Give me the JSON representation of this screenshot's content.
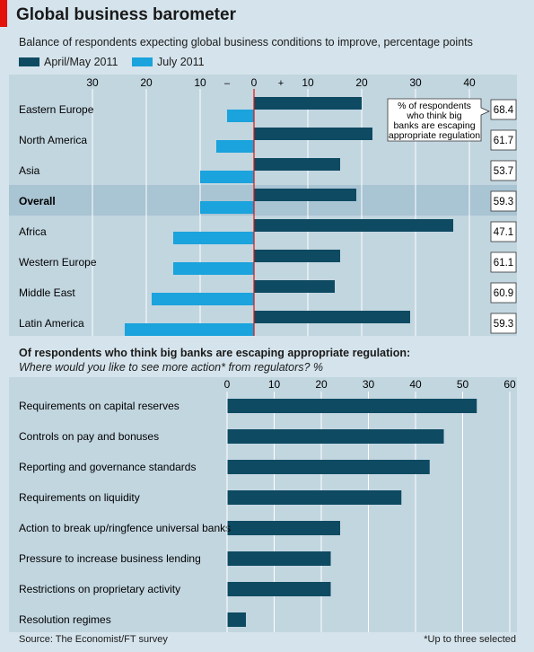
{
  "title": "Global business barometer",
  "colors": {
    "dark": "#0e4a62",
    "light": "#1aa3dc",
    "panel": "#c2d6e0",
    "highlight": "#a9c4d3",
    "zero": "#e3120b"
  },
  "chart1": {
    "subtitle": "Balance of respondents expecting global business conditions to improve, percentage points",
    "legend": [
      "April/May 2011",
      "July 2011"
    ],
    "minus_sign": "–",
    "plus_sign": "+",
    "annotation_lines": [
      "% of respondents",
      "who think big",
      "banks are escaping",
      "appropriate regulation"
    ]
  },
  "chart2": {
    "subtitle": "Of respondents who think big banks are escaping appropriate regulation:",
    "subtitle2": "Where would you like to see more action* from regulators? %"
  },
  "source": "Source: The Economist/FT survey",
  "footnote": "*Up to three selected",
  "chart_data": [
    {
      "type": "bar",
      "title": "Balance of respondents expecting global business conditions to improve, percentage points",
      "categories": [
        "Eastern Europe",
        "North America",
        "Asia",
        "Overall",
        "Africa",
        "Western Europe",
        "Middle East",
        "Latin America"
      ],
      "highlight": "Overall",
      "series": [
        {
          "name": "April/May 2011",
          "values": [
            20,
            22,
            16,
            19,
            37,
            16,
            15,
            29
          ]
        },
        {
          "name": "July 2011",
          "values": [
            -5,
            -7,
            -10,
            -10,
            -15,
            -15,
            -19,
            -24
          ]
        }
      ],
      "side_values": {
        "label": "% of respondents who think big banks are escaping appropriate regulation",
        "values": [
          "68.4",
          "61.7",
          "53.7",
          "59.3",
          "47.1",
          "61.1",
          "60.9",
          "59.3"
        ]
      },
      "xlim": [
        -30,
        40
      ],
      "xticks": [
        -30,
        -20,
        -10,
        0,
        10,
        20,
        30,
        40
      ],
      "xtick_labels": [
        "30",
        "20",
        "10",
        "0",
        "10",
        "20",
        "30",
        "40"
      ],
      "grid": true,
      "legend_position": "top-left"
    },
    {
      "type": "bar",
      "title": "Where would you like to see more action* from regulators? %",
      "categories": [
        "Requirements on capital reserves",
        "Controls on pay and bonuses",
        "Reporting and governance standards",
        "Requirements on liquidity",
        "Action to break up/ringfence universal banks",
        "Pressure to increase business lending",
        "Restrictions on proprietary activity",
        "Resolution regimes"
      ],
      "values": [
        53,
        46,
        43,
        37,
        24,
        22,
        22,
        4
      ],
      "xlim": [
        0,
        60
      ],
      "xticks": [
        0,
        10,
        20,
        30,
        40,
        50,
        60
      ],
      "grid": true
    }
  ]
}
